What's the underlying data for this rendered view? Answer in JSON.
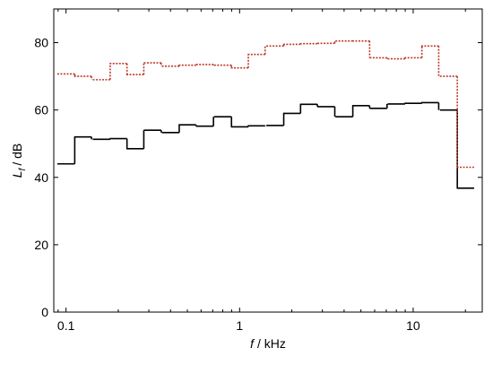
{
  "chart_data": {
    "type": "step",
    "xscale": "log",
    "xlabel": {
      "symbol": "f",
      "unit": "/ kHz"
    },
    "ylabel": {
      "symbol": "L",
      "subscript": "f",
      "unit": "/ dB"
    },
    "x": [
      0.1,
      0.125,
      0.16,
      0.2,
      0.25,
      0.315,
      0.4,
      0.5,
      0.63,
      0.8,
      1,
      1.25,
      1.6,
      2,
      2.5,
      3.15,
      4,
      5,
      6.3,
      8,
      10,
      12.5,
      16,
      20
    ],
    "series": [
      {
        "color": "#000000",
        "dash": "none",
        "values": [
          44,
          52,
          51.3,
          51.5,
          48.5,
          54,
          53.3,
          55.6,
          55.2,
          58,
          55,
          55.3,
          55.4,
          59,
          61.7,
          61,
          58,
          61.3,
          60.5,
          61.8,
          62,
          62.2,
          60,
          36.8
        ]
      },
      {
        "color": "#c0392b",
        "dash": "2,1.5",
        "values": [
          70.7,
          70,
          69,
          73.8,
          70.5,
          74,
          73,
          73.3,
          73.5,
          73.3,
          72.5,
          76.5,
          79,
          79.5,
          79.7,
          79.8,
          80.5,
          80.5,
          75.5,
          75.2,
          75.5,
          79,
          70,
          43
        ]
      }
    ],
    "xlim": [
      0.085,
      25
    ],
    "xticks": [
      0.1,
      1,
      10
    ],
    "xminorticks": [
      0.09,
      0.2,
      0.3,
      0.4,
      0.5,
      0.6,
      0.7,
      0.8,
      0.9,
      2,
      3,
      4,
      5,
      6,
      7,
      8,
      9,
      20
    ],
    "ylim": [
      0,
      90
    ],
    "yticks": [
      0,
      20,
      40,
      60,
      80
    ]
  }
}
